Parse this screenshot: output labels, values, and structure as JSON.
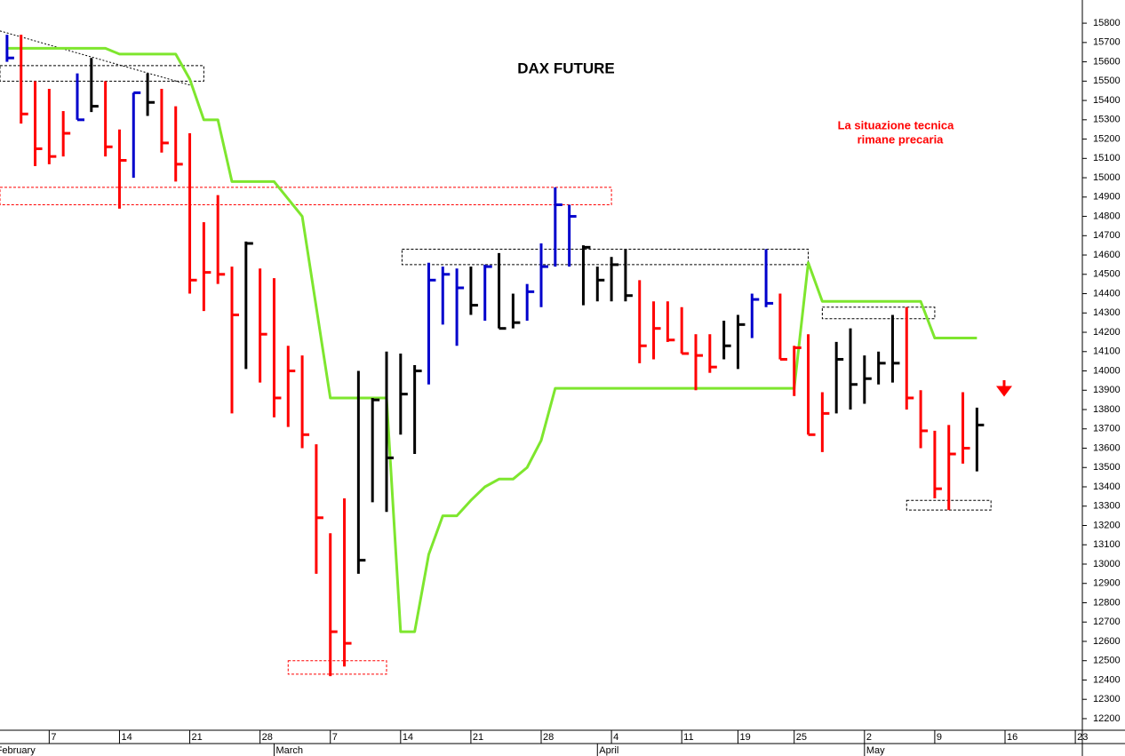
{
  "chart_data": {
    "type": "ohlc",
    "title": "DAX FUTURE",
    "annotation": [
      "La situazione tecnica",
      "rimane precaria"
    ],
    "ylim": [
      12140,
      15920
    ],
    "yticks": [
      12200,
      12300,
      12400,
      12500,
      12600,
      12700,
      12800,
      12900,
      13000,
      13100,
      13200,
      13300,
      13400,
      13500,
      13600,
      13700,
      13800,
      13900,
      14000,
      14100,
      14200,
      14300,
      14400,
      14500,
      14600,
      14700,
      14800,
      14900,
      15000,
      15100,
      15200,
      15300,
      15400,
      15500,
      15600,
      15700,
      15800
    ],
    "xlim": [
      -0.5,
      76.5
    ],
    "xticks": [
      {
        "value": 3,
        "label": "7"
      },
      {
        "value": 8,
        "label": "14"
      },
      {
        "value": 13,
        "label": "21"
      },
      {
        "value": 18,
        "label": "28"
      },
      {
        "value": 23,
        "label": "7"
      },
      {
        "value": 28,
        "label": "14"
      },
      {
        "value": 33,
        "label": "21"
      },
      {
        "value": 38,
        "label": "28"
      },
      {
        "value": 43,
        "label": "4"
      },
      {
        "value": 48,
        "label": "11"
      },
      {
        "value": 52,
        "label": "19"
      },
      {
        "value": 56,
        "label": "25"
      },
      {
        "value": 61,
        "label": "2"
      },
      {
        "value": 66,
        "label": "9"
      },
      {
        "value": 71,
        "label": "16"
      },
      {
        "value": 76,
        "label": "23"
      }
    ],
    "months": [
      {
        "value": -0.9,
        "label": "February"
      },
      {
        "value": 19,
        "label": "March"
      },
      {
        "value": 42,
        "label": "April"
      },
      {
        "value": 61,
        "label": "May"
      }
    ],
    "high": [
      15740,
      15740,
      15500,
      15460,
      15345,
      15540,
      15620,
      15500,
      15250,
      15440,
      15540,
      15460,
      15370,
      15230,
      14770,
      14910,
      14540,
      14670,
      14530,
      14480,
      14130,
      14080,
      13620,
      13160,
      13340,
      14000,
      13860,
      14100,
      14090,
      14030,
      14560,
      14540,
      14530,
      14540,
      14550,
      14610,
      14400,
      14450,
      14660,
      14950,
      14860,
      14650,
      14540,
      14590,
      14630,
      14470,
      14360,
      14360,
      14330,
      14190,
      14190,
      14260,
      14290,
      14400,
      14630,
      14400,
      14130,
      14190,
      13890,
      14150,
      14220,
      14080,
      14100,
      14290,
      14330,
      13900,
      13690,
      13720,
      13890,
      13810
    ],
    "low": [
      15600,
      15280,
      15060,
      15070,
      15110,
      15300,
      15340,
      15110,
      14840,
      15000,
      15320,
      15130,
      14980,
      14400,
      14310,
      14450,
      13780,
      14010,
      13940,
      13760,
      13710,
      13600,
      12950,
      12420,
      12470,
      12950,
      13320,
      13270,
      13670,
      13570,
      13930,
      14240,
      14130,
      14290,
      14260,
      14220,
      14220,
      14260,
      14330,
      14540,
      14540,
      14340,
      14360,
      14360,
      14360,
      14040,
      14060,
      14150,
      14090,
      13900,
      13990,
      14060,
      14010,
      14170,
      14330,
      14060,
      13870,
      13670,
      13580,
      13780,
      13800,
      13830,
      13930,
      13940,
      13800,
      13600,
      13340,
      13280,
      13520,
      13480
    ],
    "close": [
      15620,
      15330,
      15150,
      15110,
      15230,
      15300,
      15370,
      15160,
      15090,
      15440,
      15390,
      15180,
      15070,
      14470,
      14510,
      14500,
      14290,
      14660,
      14190,
      13860,
      14000,
      13670,
      13240,
      12650,
      12590,
      13020,
      13850,
      13550,
      13880,
      14000,
      14470,
      14500,
      14430,
      14340,
      14540,
      14220,
      14250,
      14410,
      14540,
      14860,
      14800,
      14640,
      14470,
      14550,
      14390,
      14130,
      14220,
      14160,
      14090,
      14080,
      14020,
      14130,
      14240,
      14370,
      14350,
      14060,
      14120,
      13670,
      13780,
      14060,
      13930,
      13960,
      14040,
      14040,
      13860,
      13690,
      13390,
      13570,
      13600,
      13720
    ],
    "bar_colors": [
      "#0000cc",
      "#ff0000",
      "#ff0000",
      "#ff0000",
      "#ff0000",
      "#0000cc",
      "#000000",
      "#ff0000",
      "#ff0000",
      "#0000cc",
      "#000000",
      "#ff0000",
      "#ff0000",
      "#ff0000",
      "#ff0000",
      "#ff0000",
      "#ff0000",
      "#000000",
      "#ff0000",
      "#ff0000",
      "#ff0000",
      "#ff0000",
      "#ff0000",
      "#ff0000",
      "#ff0000",
      "#000000",
      "#000000",
      "#000000",
      "#000000",
      "#000000",
      "#0000cc",
      "#0000cc",
      "#0000cc",
      "#000000",
      "#0000cc",
      "#000000",
      "#000000",
      "#0000cc",
      "#0000cc",
      "#0000cc",
      "#0000cc",
      "#000000",
      "#000000",
      "#000000",
      "#000000",
      "#ff0000",
      "#ff0000",
      "#ff0000",
      "#ff0000",
      "#ff0000",
      "#ff0000",
      "#000000",
      "#000000",
      "#0000cc",
      "#0000cc",
      "#ff0000",
      "#ff0000",
      "#ff0000",
      "#ff0000",
      "#000000",
      "#000000",
      "#000000",
      "#000000",
      "#000000",
      "#ff0000",
      "#ff0000",
      "#ff0000",
      "#ff0000",
      "#ff0000",
      "#000000"
    ],
    "stop": {
      "color": "#7ee62e",
      "values": [
        15670,
        15670,
        15670,
        15670,
        15670,
        15670,
        15670,
        15670,
        15640,
        15640,
        15640,
        15640,
        15640,
        15510,
        15300,
        15300,
        14980,
        14980,
        14980,
        14980,
        14890,
        14800,
        14330,
        13860,
        13860,
        13860,
        13860,
        13860,
        12650,
        12650,
        13050,
        13250,
        13250,
        13330,
        13400,
        13440,
        13440,
        13500,
        13640,
        13910,
        13910,
        13910,
        13910,
        13910,
        13910,
        13910,
        13910,
        13910,
        13910,
        13910,
        13910,
        13910,
        13910,
        13910,
        13910,
        13910,
        13910,
        14560,
        14360,
        14360,
        14360,
        14360,
        14360,
        14360,
        14360,
        14360,
        14170,
        14170,
        14170,
        14170
      ]
    },
    "zones": [
      {
        "from": -0.5,
        "to": 14,
        "low": 15500,
        "high": 15580,
        "color": "#000000"
      },
      {
        "from": -0.5,
        "to": 43,
        "low": 14860,
        "high": 14950,
        "color": "#ff0000"
      },
      {
        "from": 28.1,
        "to": 57,
        "low": 14550,
        "high": 14630,
        "color": "#000000"
      },
      {
        "from": 20,
        "to": 27,
        "low": 12430,
        "high": 12500,
        "color": "#ff0000"
      },
      {
        "from": 58,
        "to": 66,
        "low": 14270,
        "high": 14330,
        "color": "#000000"
      },
      {
        "from": 64,
        "to": 70,
        "low": 13280,
        "high": 13330,
        "color": "#000000"
      }
    ],
    "trendline": {
      "from": -0.5,
      "to": 13,
      "start": 15760,
      "end": 15480
    }
  }
}
